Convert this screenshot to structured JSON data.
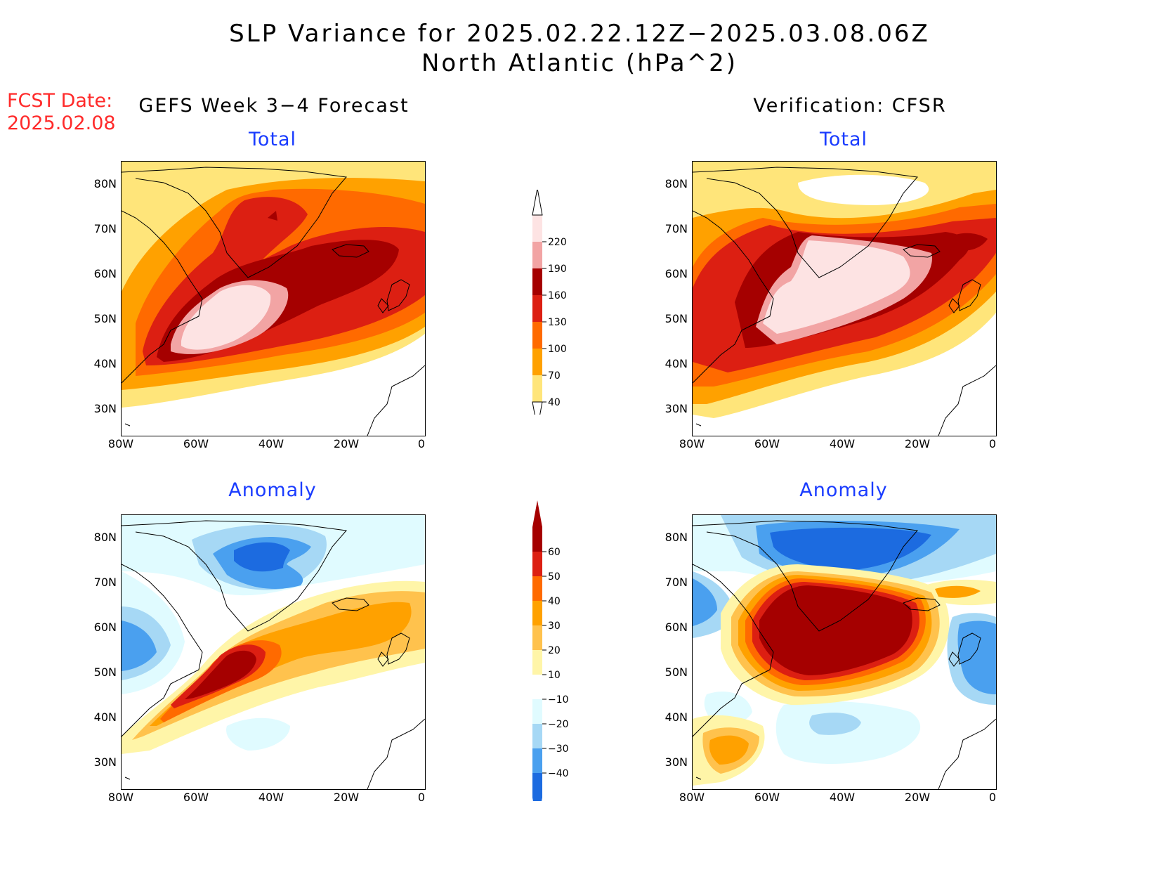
{
  "header": {
    "title_line1": "SLP Variance for 2025.02.22.12Z−2025.03.08.06Z",
    "title_line2": "North Atlantic (hPa^2)",
    "fcst_label": "FCST Date:",
    "fcst_date": "2025.02.08"
  },
  "columns": {
    "left_title": "GEFS Week 3−4 Forecast",
    "right_title": "Verification: CFSR"
  },
  "panels": {
    "tl_title": "Total",
    "tr_title": "Total",
    "bl_title": "Anomaly",
    "br_title": "Anomaly"
  },
  "axes": {
    "lat_labels": [
      "80N",
      "70N",
      "60N",
      "50N",
      "40N",
      "30N"
    ],
    "lon_labels": [
      "80W",
      "60W",
      "40W",
      "20W",
      "0"
    ]
  },
  "colorbars": {
    "total": {
      "labels": [
        "220",
        "190",
        "160",
        "130",
        "100",
        "70",
        "40"
      ],
      "colors": [
        "#fde3e3",
        "#f2a4a4",
        "#a50000",
        "#dc1f12",
        "#ff6a00",
        "#ffa100",
        "#ffe57a"
      ]
    },
    "anomaly": {
      "labels": [
        "60",
        "50",
        "40",
        "30",
        "20",
        "10",
        "−10",
        "−20",
        "−30",
        "−40"
      ],
      "colors": [
        "#a50000",
        "#dc1f12",
        "#ff6a00",
        "#ffa100",
        "#ffc24d",
        "#fff5a8",
        "#ffffff",
        "#e0fbff",
        "#a6d8f5",
        "#4aa0ef",
        "#1c6be0"
      ]
    }
  }
}
